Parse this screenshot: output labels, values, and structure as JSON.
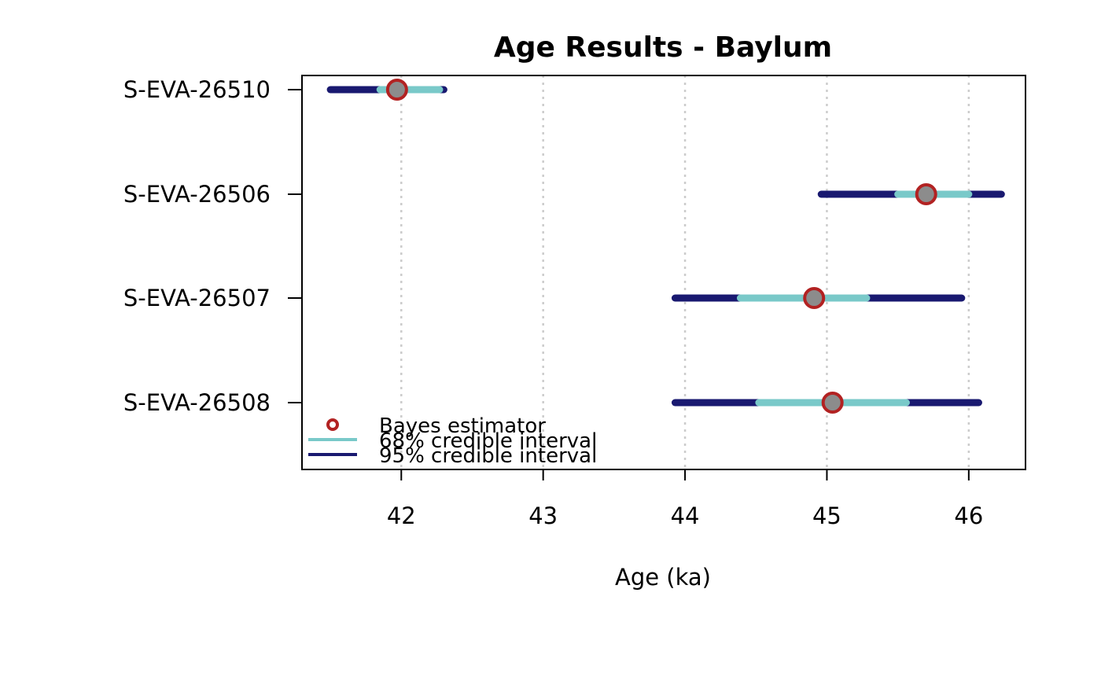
{
  "chart_data": {
    "type": "interval",
    "title": "Age Results - Baylum",
    "xlabel": "Age (ka)",
    "ylabel": "",
    "xlim": [
      41.3,
      46.4
    ],
    "x_ticks": [
      42,
      43,
      44,
      45,
      46
    ],
    "grid": "vertical dotted at x ticks",
    "legend_position": "bottom-left",
    "legend": [
      {
        "label": "Bayes estimator",
        "kind": "circle"
      },
      {
        "label": "68% credible interval",
        "kind": "line"
      },
      {
        "label": "95% credible interval",
        "kind": "line"
      }
    ],
    "samples": [
      {
        "name": "S-EVA-26510",
        "estimate": 41.97,
        "ci68": [
          41.85,
          42.27
        ],
        "ci95": [
          41.5,
          42.3
        ]
      },
      {
        "name": "S-EVA-26506",
        "estimate": 45.7,
        "ci68": [
          45.5,
          46.0
        ],
        "ci95": [
          44.96,
          46.23
        ]
      },
      {
        "name": "S-EVA-26507",
        "estimate": 44.91,
        "ci68": [
          44.39,
          45.28
        ],
        "ci95": [
          43.93,
          45.95
        ]
      },
      {
        "name": "S-EVA-26508",
        "estimate": 45.04,
        "ci68": [
          44.52,
          45.56
        ],
        "ci95": [
          43.93,
          46.07
        ]
      }
    ]
  },
  "colors": {
    "ci95": "#191970",
    "ci68": "#79c9c9",
    "estimator_stroke": "#b22222",
    "estimator_fill": "#8c8c8c",
    "grid": "#cccccc"
  }
}
